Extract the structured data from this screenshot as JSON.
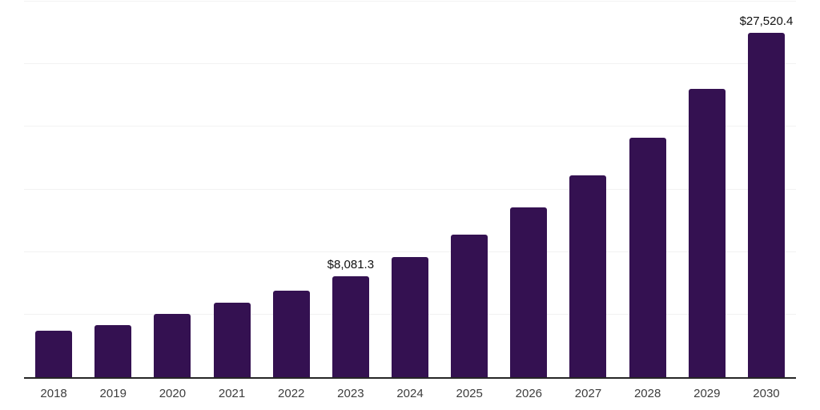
{
  "chart": {
    "background_color": "#ffffff",
    "bar_color": "#341151",
    "axis_line_color": "#262626",
    "gridline_color": "#f2f2f2",
    "tick_label_color": "#3d3d3d",
    "data_label_color": "#111111"
  },
  "chart_data": {
    "type": "bar",
    "title": "",
    "xlabel": "",
    "ylabel": "",
    "categories": [
      "2018",
      "2019",
      "2020",
      "2021",
      "2022",
      "2023",
      "2024",
      "2025",
      "2026",
      "2027",
      "2028",
      "2029",
      "2030"
    ],
    "values": [
      3700,
      4150,
      5030,
      5920,
      6940,
      8081.3,
      9620,
      11400,
      13570,
      16110,
      19100,
      23000,
      27520.4
    ],
    "data_labels": {
      "2023": "$8,081.3",
      "2030": "$27,520.4"
    },
    "ylim": [
      0,
      30000
    ],
    "gridline_interval": 5000,
    "grid": true,
    "legend_position": "none",
    "y_axis_labels_visible": false
  }
}
